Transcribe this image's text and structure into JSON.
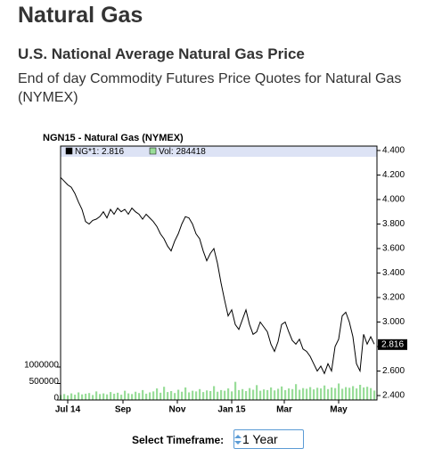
{
  "header": {
    "title": "Natural Gas",
    "subtitle": "U.S. National Average Natural Gas Price",
    "description": "End of day Commodity Futures Price Quotes for Natural Gas (NYMEX)"
  },
  "chart_data": {
    "type": "line",
    "title": "NGN15 - Natural Gas (NYMEX)",
    "x": [
      0,
      4,
      8,
      12,
      16,
      20,
      24,
      28,
      32,
      36,
      40,
      44,
      48,
      52,
      56,
      60,
      64,
      68,
      72,
      76,
      80,
      84,
      88,
      92,
      96,
      100,
      104,
      108,
      112,
      116,
      120,
      124,
      128,
      132,
      136,
      140,
      144,
      148,
      152,
      156,
      160,
      164,
      168,
      172,
      176,
      180,
      184,
      188,
      192,
      196,
      200,
      204,
      208,
      212,
      216,
      220,
      224,
      228,
      232,
      236,
      240,
      244,
      248,
      252,
      256,
      260,
      264,
      268,
      272,
      276,
      280,
      284,
      288,
      292,
      296,
      300,
      304,
      308,
      312,
      316,
      320,
      324,
      328,
      332,
      336,
      340,
      344,
      348,
      352
    ],
    "series": [
      {
        "name": "NG*1: 2.816",
        "color": "#000000",
        "values": [
          4.18,
          4.15,
          4.12,
          4.1,
          4.05,
          3.98,
          3.92,
          3.82,
          3.8,
          3.83,
          3.84,
          3.86,
          3.9,
          3.85,
          3.92,
          3.88,
          3.93,
          3.9,
          3.92,
          3.88,
          3.93,
          3.9,
          3.88,
          3.84,
          3.88,
          3.85,
          3.82,
          3.78,
          3.72,
          3.68,
          3.62,
          3.58,
          3.66,
          3.72,
          3.8,
          3.86,
          3.85,
          3.8,
          3.72,
          3.68,
          3.58,
          3.5,
          3.56,
          3.6,
          3.48,
          3.32,
          3.18,
          3.05,
          3.1,
          2.98,
          2.94,
          3.02,
          3.1,
          2.98,
          2.9,
          2.92,
          3.0,
          2.96,
          2.92,
          2.82,
          2.76,
          2.84,
          2.98,
          3.0,
          2.92,
          2.85,
          2.82,
          2.86,
          2.78,
          2.76,
          2.72,
          2.66,
          2.6,
          2.64,
          2.58,
          2.66,
          2.6,
          2.8,
          2.86,
          3.05,
          3.08,
          3.0,
          2.88,
          2.66,
          2.6,
          2.9,
          2.82,
          2.88,
          2.82
        ]
      },
      {
        "name": "Vol: 284418",
        "color": "#99dd99",
        "axis": "y2",
        "values": [
          150000,
          180000,
          140000,
          200000,
          160000,
          230000,
          170000,
          190000,
          210000,
          150000,
          260000,
          180000,
          200000,
          170000,
          240000,
          190000,
          220000,
          160000,
          280000,
          200000,
          180000,
          250000,
          210000,
          300000,
          190000,
          230000,
          260000,
          350000,
          220000,
          400000,
          240000,
          270000,
          210000,
          310000,
          250000,
          380000,
          230000,
          280000,
          260000,
          330000,
          240000,
          290000,
          270000,
          420000,
          250000,
          300000,
          280000,
          350000,
          260000,
          550000,
          300000,
          330000,
          270000,
          360000,
          310000,
          450000,
          280000,
          320000,
          300000,
          380000,
          290000,
          340000,
          410000,
          300000,
          350000,
          330000,
          480000,
          310000,
          360000,
          340000,
          390000,
          320000,
          370000,
          350000,
          440000,
          330000,
          380000,
          360000,
          500000,
          340000,
          390000,
          370000,
          420000,
          350000,
          460000,
          380000,
          400000,
          360000,
          284418
        ]
      }
    ],
    "last_value": 2.816,
    "xlim": [
      0,
      355
    ],
    "xticks": [
      {
        "value": 8,
        "label": "Jul 14"
      },
      {
        "value": 70,
        "label": "Sep"
      },
      {
        "value": 131,
        "label": "Nov"
      },
      {
        "value": 192,
        "label": "Jan 15"
      },
      {
        "value": 251,
        "label": "Mar"
      },
      {
        "value": 312,
        "label": "May"
      }
    ],
    "ylim": [
      2.364,
      4.436
    ],
    "yticks": [
      {
        "value": 2.4,
        "label": "2.400"
      },
      {
        "value": 2.6,
        "label": "2.600"
      },
      {
        "value": 2.8,
        "label": "2.800"
      },
      {
        "value": 3.0,
        "label": "3.000"
      },
      {
        "value": 3.2,
        "label": "3.200"
      },
      {
        "value": 3.4,
        "label": "3.400"
      },
      {
        "value": 3.6,
        "label": "3.600"
      },
      {
        "value": 3.8,
        "label": "3.800"
      },
      {
        "value": 4.0,
        "label": "4.000"
      },
      {
        "value": 4.2,
        "label": "4.200"
      },
      {
        "value": 4.4,
        "label": "4.400"
      }
    ],
    "y2lim": [
      0,
      7700000
    ],
    "y2ticks": [
      0,
      500000,
      1000000
    ],
    "grid": false
  },
  "timeframe": {
    "label": "Select Timeframe:",
    "value": "1 Year"
  }
}
